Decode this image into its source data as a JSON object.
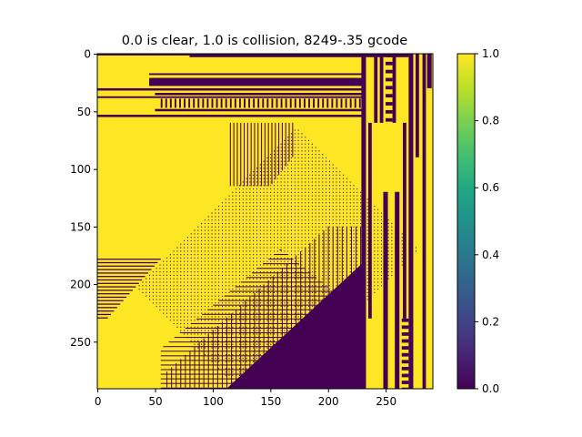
{
  "chart_data": {
    "type": "heatmap",
    "title": "0.0 is clear, 1.0 is collision, 8249-.35 gcode",
    "xlabel": "",
    "ylabel": "",
    "grid_size": [
      291,
      291
    ],
    "x_range": [
      0,
      290
    ],
    "y_range": [
      0,
      290
    ],
    "y_axis_direction": "top-to-bottom",
    "x_ticks": [
      "0",
      "50",
      "100",
      "150",
      "200",
      "250"
    ],
    "x_tick_values": [
      0,
      50,
      100,
      150,
      200,
      250
    ],
    "y_ticks": [
      "0",
      "50",
      "100",
      "150",
      "200",
      "250"
    ],
    "y_tick_values": [
      0,
      50,
      100,
      150,
      200,
      250
    ],
    "colorbar": {
      "ticks": [
        "0.0",
        "0.2",
        "0.4",
        "0.6",
        "0.8",
        "1.0"
      ],
      "tick_values": [
        0.0,
        0.2,
        0.4,
        0.6,
        0.8,
        1.0
      ],
      "range": [
        0.0,
        1.0
      ],
      "placement": "right"
    },
    "colormap": "viridis",
    "values_present": [
      0.0,
      1.0
    ],
    "colors": {
      "clear_0": "#440154",
      "collision_1": "#fde725"
    },
    "regions_approx": [
      {
        "description": "lower-right triangle clear",
        "value": 0.0
      },
      {
        "description": "upper-left region collision",
        "value": 1.0
      },
      {
        "description": "horizontal dark bands near top (y≈20-50)",
        "value": 0.0
      },
      {
        "description": "vertical dark columns near x≈230-285",
        "value": 0.0
      },
      {
        "description": "diagonal dotted/cross-hatched band",
        "value": "mixed"
      }
    ]
  }
}
